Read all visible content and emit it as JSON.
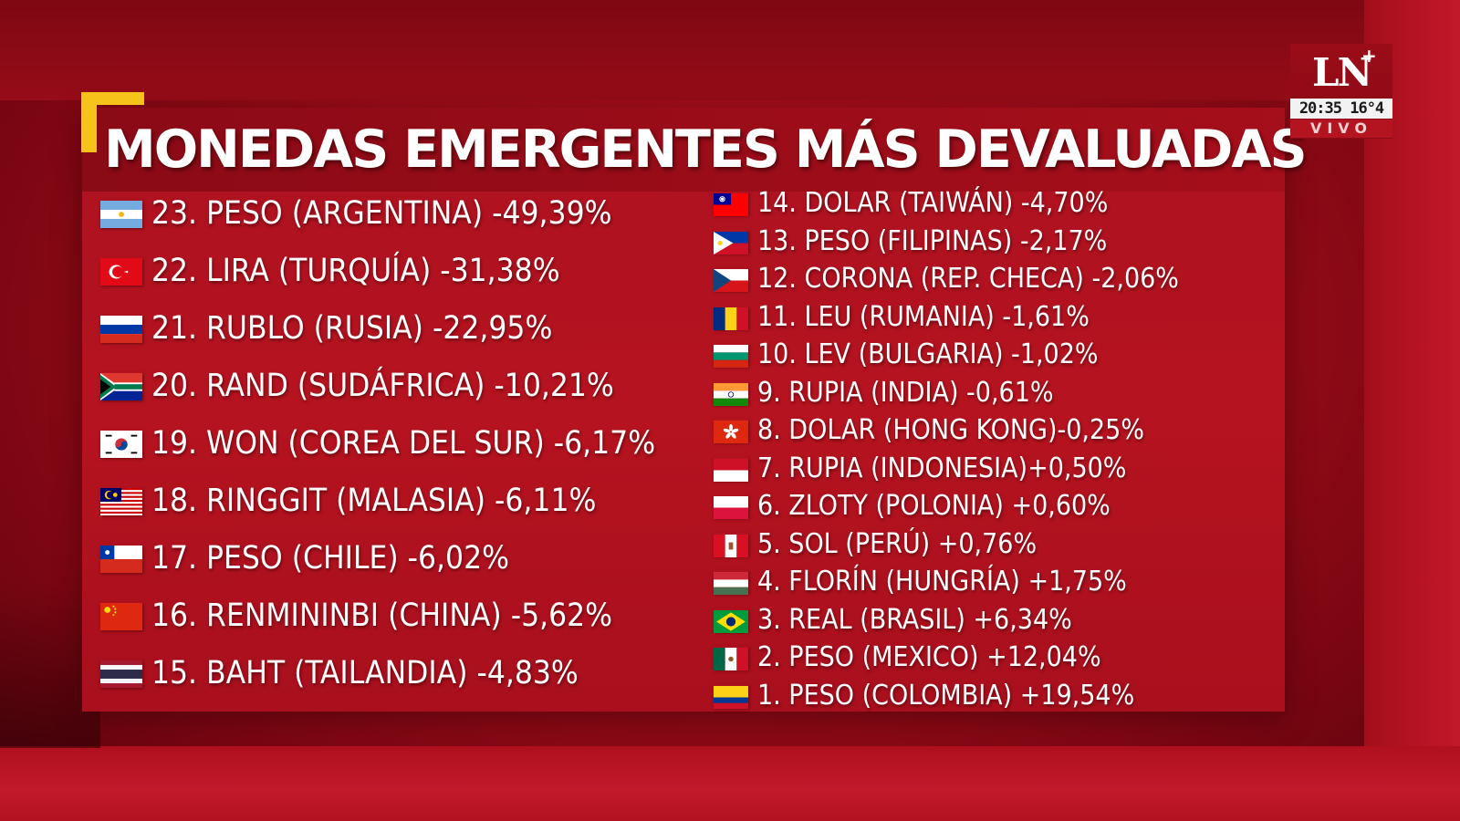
{
  "title": "MONEDAS EMERGENTES MÁS DEVALUADAS",
  "broadcast": {
    "logo": "LN",
    "logo_plus": "+",
    "clock": "20:35 16°4",
    "live": "VIVO"
  },
  "left_column": [
    {
      "text": "23. PESO (ARGENTINA) -49,39%",
      "flag": "argentina-flag-icon"
    },
    {
      "text": "22. LIRA (TURQUÍA) -31,38%",
      "flag": "turkey-flag-icon"
    },
    {
      "text": "21. RUBLO (RUSIA) -22,95%",
      "flag": "russia-flag-icon"
    },
    {
      "text": "20. RAND (SUDÁFRICA) -10,21%",
      "flag": "south-africa-flag-icon"
    },
    {
      "text": "19. WON (COREA DEL SUR) -6,17%",
      "flag": "south-korea-flag-icon"
    },
    {
      "text": "18. RINGGIT (MALASIA) -6,11%",
      "flag": "malaysia-flag-icon"
    },
    {
      "text": "17. PESO (CHILE) -6,02%",
      "flag": "chile-flag-icon"
    },
    {
      "text": "16. RENMININBI (CHINA) -5,62%",
      "flag": "china-flag-icon"
    },
    {
      "text": "15. BAHT (TAILANDIA) -4,83%",
      "flag": "thailand-flag-icon"
    }
  ],
  "right_column": [
    {
      "text": "14. DOLAR (TAIWÁN) -4,70%",
      "flag": "taiwan-flag-icon"
    },
    {
      "text": "13. PESO (FILIPINAS) -2,17%",
      "flag": "philippines-flag-icon"
    },
    {
      "text": "12. CORONA (REP. CHECA) -2,06%",
      "flag": "czech-flag-icon"
    },
    {
      "text": "11. LEU (RUMANIA) -1,61%",
      "flag": "romania-flag-icon"
    },
    {
      "text": "10. LEV (BULGARIA) -1,02%",
      "flag": "bulgaria-flag-icon"
    },
    {
      "text": "9. RUPIA (INDIA) -0,61%",
      "flag": "india-flag-icon"
    },
    {
      "text": "8. DOLAR (HONG KONG)-0,25%",
      "flag": "hong-kong-flag-icon"
    },
    {
      "text": "7. RUPIA (INDONESIA)+0,50%",
      "flag": "indonesia-flag-icon"
    },
    {
      "text": "6. ZLOTY (POLONIA) +0,60%",
      "flag": "poland-flag-icon"
    },
    {
      "text": "5. SOL (PERÚ) +0,76%",
      "flag": "peru-flag-icon"
    },
    {
      "text": "4. FLORÍN (HUNGRÍA) +1,75%",
      "flag": "hungary-flag-icon"
    },
    {
      "text": "3. REAL (BRASIL) +6,34%",
      "flag": "brazil-flag-icon"
    },
    {
      "text": "2. PESO (MEXICO) +12,04%",
      "flag": "mexico-flag-icon"
    },
    {
      "text": "1. PESO (COLOMBIA) +19,54%",
      "flag": "colombia-flag-icon"
    }
  ],
  "colors": {
    "background": "#9a0c19",
    "panel": "#b0111f",
    "accent_corner": "#f5c31a",
    "text": "#ffffff"
  }
}
